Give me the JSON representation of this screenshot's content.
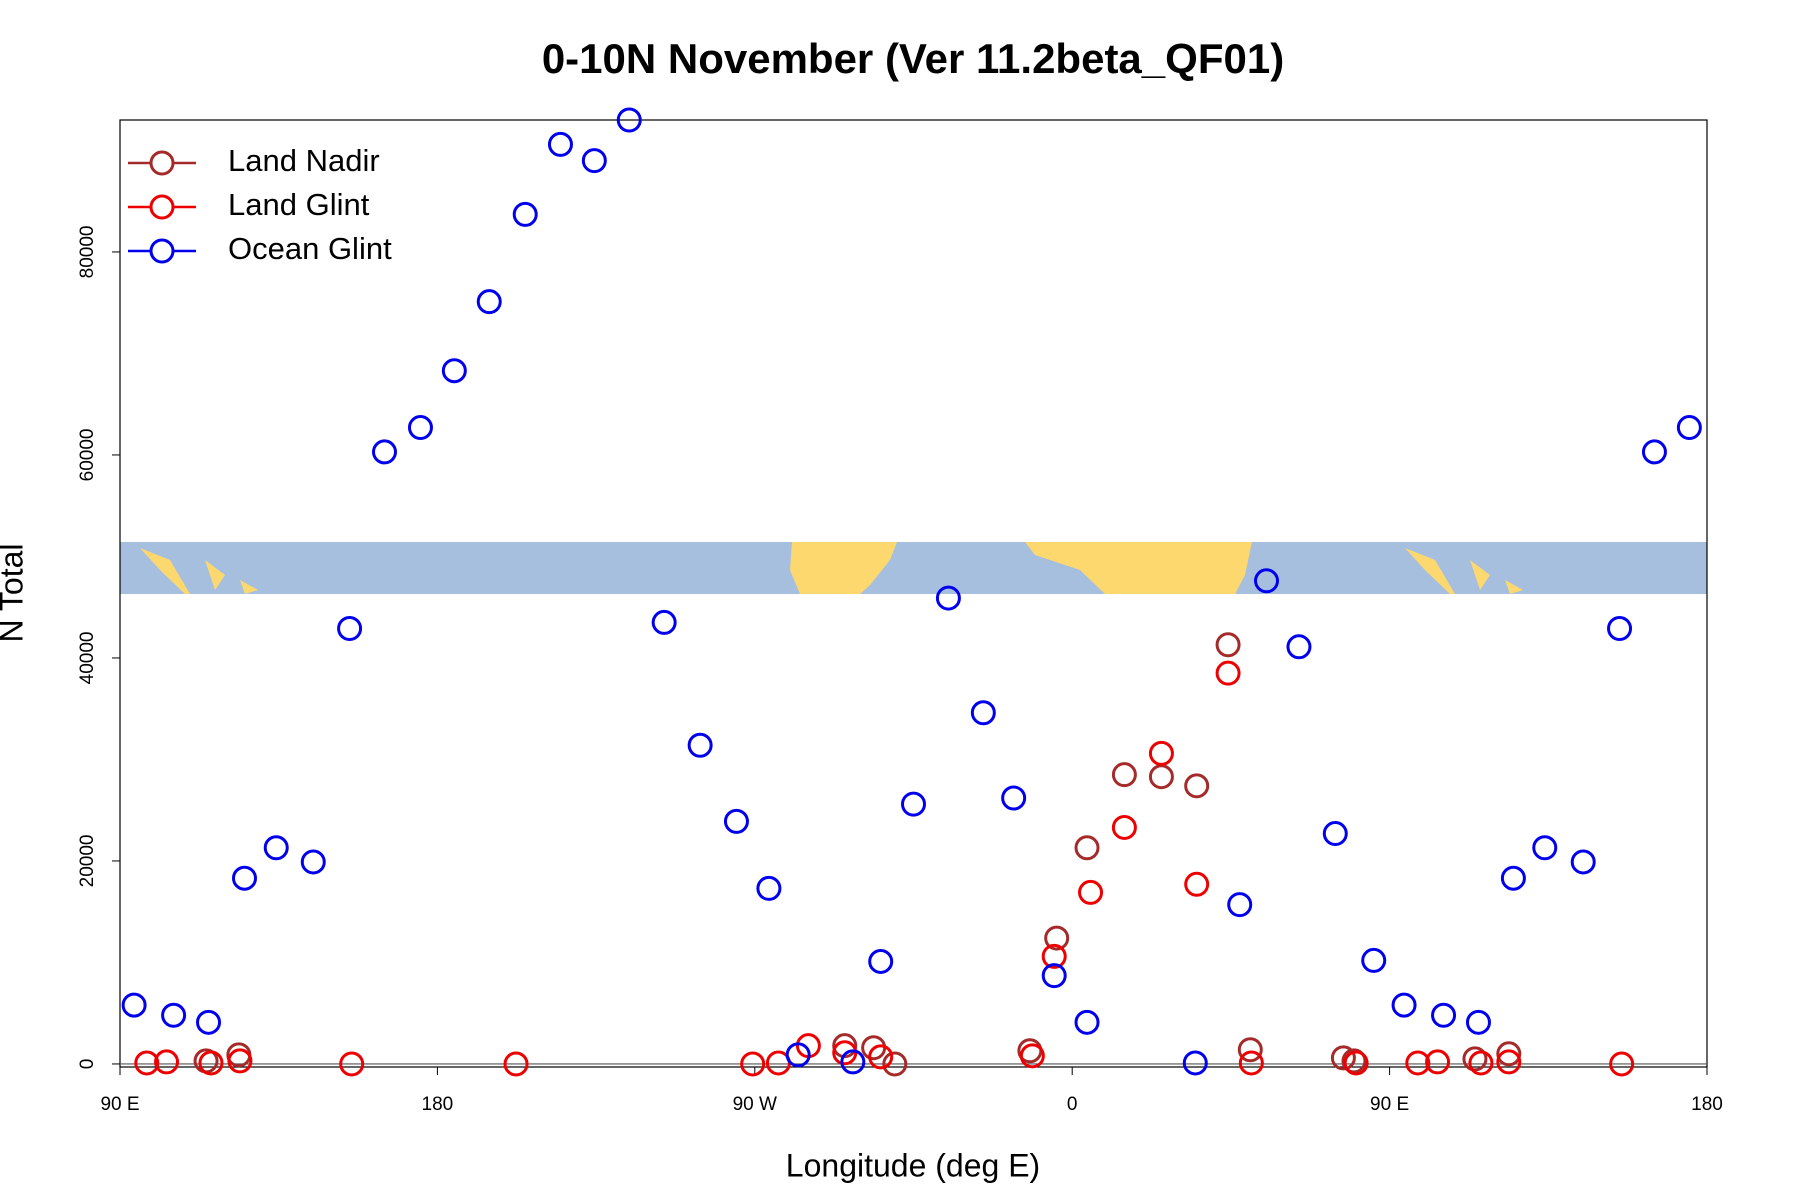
{
  "chart_data": {
    "type": "scatter",
    "title": "0-10N November (Ver 11.2beta_QF01)",
    "x_label": "Longitude (deg E)",
    "y_label": "N Total",
    "xlim": [
      90,
      540
    ],
    "ylim": [
      -300,
      93000
    ],
    "xticks": [
      {
        "value": 90,
        "label": "90 E"
      },
      180,
      {
        "value": 270,
        "label": "90 W"
      },
      {
        "value": 360,
        "label": "0"
      },
      {
        "value": 450,
        "label": "90 E"
      },
      {
        "value": 540,
        "label": "180"
      }
    ],
    "yticks": [
      0,
      20000,
      40000,
      60000,
      80000
    ],
    "legend": "topleft",
    "series": [
      {
        "name": "Land Nadir",
        "color": "#a52a2a",
        "x": [
          114.4,
          123.7,
          295.5,
          303.7,
          309.7,
          348,
          355.6,
          364.2,
          374.8,
          385.3,
          395.3,
          404.2,
          410.5,
          436.9,
          439.9,
          474.2,
          483.8
        ],
        "values": [
          300,
          900,
          1800,
          1600,
          0,
          1300,
          12400,
          21300,
          28500,
          28300,
          27400,
          41300,
          1400,
          600,
          300,
          500,
          1000
        ]
      },
      {
        "name": "Land Glint",
        "color": "#ee0000",
        "x": [
          97.6,
          103.2,
          115.8,
          124,
          155.7,
          202.3,
          269.4,
          276.7,
          285.2,
          295.5,
          305.7,
          348.7,
          354.9,
          365.2,
          374.8,
          385.3,
          395.3,
          404.2,
          410.8,
          440.5,
          458,
          463.6,
          475.9,
          483.8,
          515.8
        ],
        "values": [
          100,
          200,
          100,
          300,
          0,
          0,
          0,
          100,
          1800,
          1100,
          700,
          800,
          10600,
          16900,
          23300,
          30600,
          17700,
          38500,
          100,
          100,
          100,
          200,
          100,
          200,
          0
        ]
      },
      {
        "name": "Ocean Glint",
        "color": "#0000ee",
        "x": [
          94,
          105.2,
          115.1,
          125.3,
          134.3,
          144.8,
          155.1,
          165,
          175.2,
          184.8,
          194.7,
          204.9,
          214.9,
          224.5,
          234.4,
          244.3,
          254.5,
          264.8,
          274,
          282.3,
          297.8,
          305.7,
          315,
          324.9,
          334.8,
          343.4,
          354.9,
          364.2,
          394.9,
          407.5,
          415.1,
          424.3,
          434.6,
          445.5,
          454.1,
          465.3,
          475.2,
          485.1,
          494,
          504.9,
          515.2,
          525.1,
          535
        ],
        "values": [
          5800,
          4800,
          4100,
          18300,
          21300,
          19900,
          42900,
          60300,
          62700,
          68300,
          75100,
          83700,
          90600,
          89000,
          93000,
          43500,
          31400,
          23900,
          17300,
          900,
          200,
          10100,
          25600,
          45900,
          34600,
          26200,
          8700,
          4100,
          100,
          15700,
          47600,
          41100,
          22700,
          10200,
          5800,
          4800,
          4100,
          18300,
          21300,
          19900,
          42900,
          60300,
          62700
        ]
      }
    ]
  }
}
